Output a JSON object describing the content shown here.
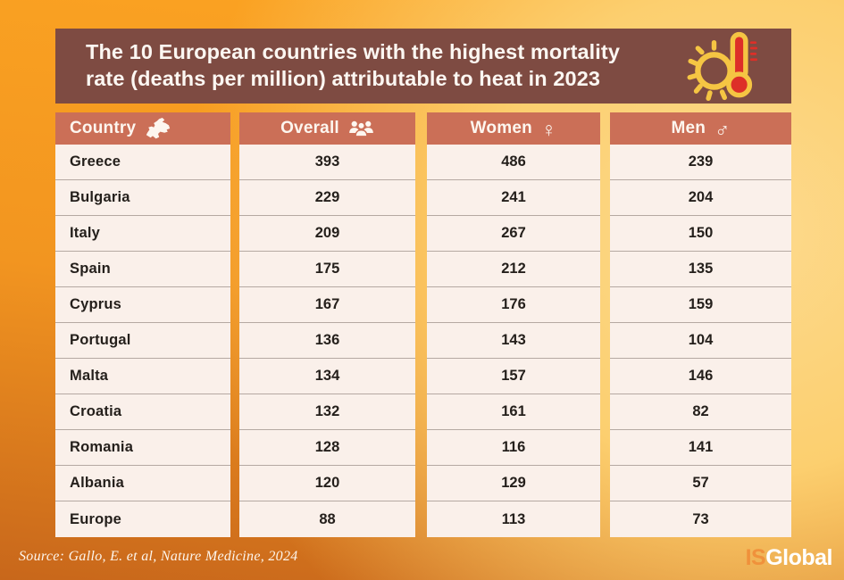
{
  "title": {
    "line1": "The 10 European countries with the highest mortality",
    "line2": "rate (deaths per million) attributable to heat in 2023"
  },
  "header_icon": "sun-thermometer",
  "chart_data": {
    "type": "table",
    "title": "The 10 European countries with the highest mortality rate (deaths per million) attributable to heat in 2023",
    "columns": [
      {
        "key": "country",
        "label": "Country",
        "icon": "europe-map"
      },
      {
        "key": "overall",
        "label": "Overall",
        "icon": "users"
      },
      {
        "key": "women",
        "label": "Women",
        "icon": "♀"
      },
      {
        "key": "men",
        "label": "Men",
        "icon": "♂"
      }
    ],
    "rows": [
      [
        "Greece",
        "393",
        "486",
        "239"
      ],
      [
        "Bulgaria",
        "229",
        "241",
        "204"
      ],
      [
        "Italy",
        "209",
        "267",
        "150"
      ],
      [
        "Spain",
        "175",
        "212",
        "135"
      ],
      [
        "Cyprus",
        "167",
        "176",
        "159"
      ],
      [
        "Portugal",
        "136",
        "143",
        "104"
      ],
      [
        "Malta",
        "134",
        "157",
        "146"
      ],
      [
        "Croatia",
        "132",
        "161",
        "82"
      ],
      [
        "Romania",
        "128",
        "116",
        "141"
      ],
      [
        "Albania",
        "120",
        "129",
        "57"
      ],
      [
        "Europe",
        "88",
        "113",
        "73"
      ]
    ]
  },
  "footer": {
    "source": "Source: Gallo, E. et al, Nature Medicine, 2024",
    "brand": {
      "prefix": "IS",
      "suffix": "Global"
    }
  },
  "colors": {
    "background_orange": "#FBA322",
    "background_dark": "#C8671B",
    "background_light": "#FDDA8E",
    "title_bar_brown": "#7E4B42",
    "column_header_salmon": "#CB6F57",
    "row_cream": "#FAF0EA",
    "row_separator": "#B5A9A2",
    "text_dark": "#241F1B",
    "brand_orange": "#F0913B",
    "sun_yellow": "#F5C543",
    "thermometer_red": "#DD2F28"
  }
}
